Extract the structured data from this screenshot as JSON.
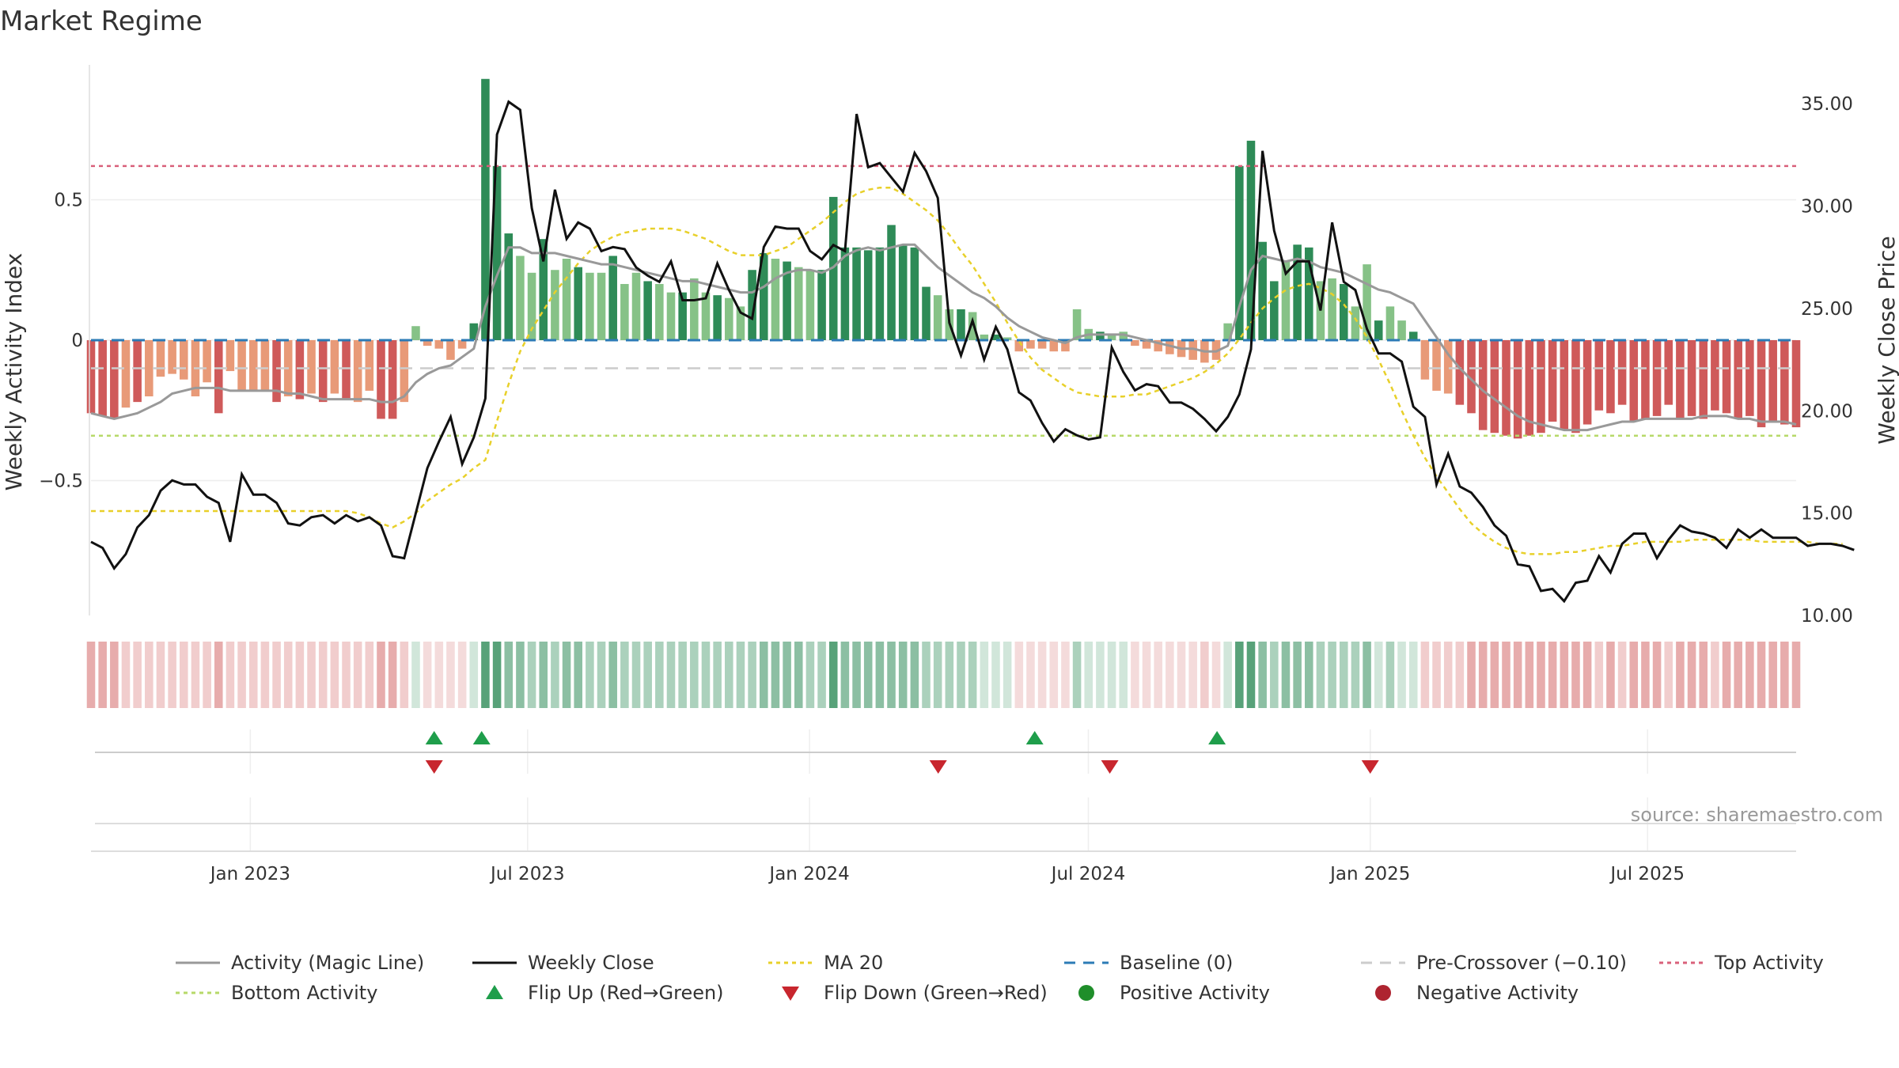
{
  "chart_data": {
    "type": "bar",
    "title": "Market Regime",
    "source": "source: sharemaestro.com",
    "ylabel_left": "Weekly Activity Index",
    "ylabel_right": "Weekly Close Price",
    "ylim_left": [
      -0.98,
      0.98
    ],
    "ylim_right": [
      10.0,
      36.9
    ],
    "left_ticks": [
      {
        "v": 0.5,
        "label": "0.5"
      },
      {
        "v": 0,
        "label": "0"
      },
      {
        "v": -0.5,
        "label": "−0.5"
      }
    ],
    "right_ticks": [
      {
        "v": 35,
        "label": "35.00"
      },
      {
        "v": 30,
        "label": "30.00"
      },
      {
        "v": 25,
        "label": "25.00"
      },
      {
        "v": 20,
        "label": "20.00"
      },
      {
        "v": 15,
        "label": "15.00"
      },
      {
        "v": 10,
        "label": "10.00"
      }
    ],
    "x_start": "2022-09-19",
    "x_end": "2025-10-06",
    "date_ticks": [
      {
        "date": "2023-01-01",
        "label": "Jan 2023"
      },
      {
        "date": "2023-07-01",
        "label": "Jul 2023"
      },
      {
        "date": "2024-01-01",
        "label": "Jan 2024"
      },
      {
        "date": "2024-07-01",
        "label": "Jul 2024"
      },
      {
        "date": "2025-01-01",
        "label": "Jan 2025"
      },
      {
        "date": "2025-07-01",
        "label": "Jul 2025"
      }
    ],
    "reference_lines": {
      "top_activity": 0.62,
      "bottom_activity": -0.34,
      "pre_crossover": -0.1,
      "baseline": 0
    },
    "activity": [
      -0.26,
      -0.27,
      -0.28,
      -0.24,
      -0.22,
      -0.2,
      -0.13,
      -0.12,
      -0.14,
      -0.2,
      -0.15,
      -0.26,
      -0.11,
      -0.18,
      -0.18,
      -0.18,
      -0.22,
      -0.2,
      -0.21,
      -0.19,
      -0.22,
      -0.19,
      -0.21,
      -0.22,
      -0.18,
      -0.28,
      -0.28,
      -0.22,
      0.05,
      -0.02,
      -0.03,
      -0.07,
      -0.03,
      0.06,
      0.93,
      0.62,
      0.38,
      0.3,
      0.24,
      0.36,
      0.25,
      0.29,
      0.26,
      0.24,
      0.24,
      0.3,
      0.2,
      0.24,
      0.21,
      0.2,
      0.17,
      0.17,
      0.22,
      0.17,
      0.16,
      0.15,
      0.12,
      0.25,
      0.31,
      0.29,
      0.28,
      0.26,
      0.25,
      0.25,
      0.51,
      0.33,
      0.33,
      0.32,
      0.33,
      0.41,
      0.34,
      0.33,
      0.19,
      0.16,
      0.11,
      0.11,
      0.1,
      0.02,
      0.02,
      0.01,
      -0.04,
      -0.03,
      -0.03,
      -0.04,
      -0.04,
      0.11,
      0.04,
      0.03,
      0.02,
      0.03,
      -0.02,
      -0.03,
      -0.04,
      -0.05,
      -0.06,
      -0.07,
      -0.08,
      -0.07,
      0.06,
      0.62,
      0.71,
      0.35,
      0.21,
      0.28,
      0.34,
      0.33,
      0.21,
      0.22,
      0.2,
      0.12,
      0.27,
      0.07,
      0.12,
      0.07,
      0.03,
      -0.14,
      -0.18,
      -0.19,
      -0.23,
      -0.26,
      -0.32,
      -0.33,
      -0.34,
      -0.35,
      -0.34,
      -0.33,
      -0.29,
      -0.32,
      -0.33,
      -0.3,
      -0.25,
      -0.26,
      -0.23,
      -0.29,
      -0.28,
      -0.27,
      -0.23,
      -0.28,
      -0.27,
      -0.28,
      -0.25,
      -0.26,
      -0.28,
      -0.27,
      -0.31,
      -0.29,
      -0.3,
      -0.31
    ],
    "magic_line": [
      -0.26,
      -0.27,
      -0.28,
      -0.27,
      -0.26,
      -0.24,
      -0.22,
      -0.19,
      -0.18,
      -0.17,
      -0.17,
      -0.17,
      -0.18,
      -0.18,
      -0.18,
      -0.18,
      -0.18,
      -0.19,
      -0.19,
      -0.2,
      -0.21,
      -0.21,
      -0.21,
      -0.21,
      -0.21,
      -0.22,
      -0.22,
      -0.2,
      -0.15,
      -0.12,
      -0.1,
      -0.09,
      -0.06,
      -0.03,
      0.12,
      0.23,
      0.33,
      0.33,
      0.31,
      0.31,
      0.31,
      0.3,
      0.29,
      0.28,
      0.27,
      0.27,
      0.26,
      0.25,
      0.24,
      0.23,
      0.22,
      0.21,
      0.21,
      0.2,
      0.19,
      0.18,
      0.17,
      0.17,
      0.19,
      0.22,
      0.24,
      0.25,
      0.25,
      0.24,
      0.26,
      0.3,
      0.32,
      0.33,
      0.32,
      0.33,
      0.34,
      0.34,
      0.3,
      0.26,
      0.23,
      0.2,
      0.17,
      0.15,
      0.12,
      0.08,
      0.05,
      0.03,
      0.01,
      0.0,
      -0.01,
      0.01,
      0.02,
      0.02,
      0.02,
      0.02,
      0.01,
      0.0,
      -0.01,
      -0.02,
      -0.03,
      -0.03,
      -0.04,
      -0.04,
      -0.02,
      0.12,
      0.25,
      0.3,
      0.29,
      0.28,
      0.29,
      0.28,
      0.26,
      0.25,
      0.24,
      0.22,
      0.2,
      0.18,
      0.17,
      0.15,
      0.13,
      0.07,
      0.01,
      -0.05,
      -0.1,
      -0.14,
      -0.18,
      -0.21,
      -0.24,
      -0.27,
      -0.29,
      -0.3,
      -0.31,
      -0.32,
      -0.32,
      -0.32,
      -0.31,
      -0.3,
      -0.29,
      -0.29,
      -0.28,
      -0.28,
      -0.28,
      -0.28,
      -0.28,
      -0.27,
      -0.27,
      -0.27,
      -0.28,
      -0.28,
      -0.29,
      -0.29,
      -0.29,
      -0.3
    ],
    "close": [
      13.6,
      13.3,
      12.3,
      13.0,
      14.3,
      14.9,
      16.1,
      16.6,
      16.4,
      16.4,
      15.8,
      15.5,
      13.6,
      16.9,
      15.9,
      15.9,
      15.5,
      14.5,
      14.4,
      14.8,
      14.9,
      14.5,
      14.9,
      14.6,
      14.8,
      14.4,
      12.9,
      12.8,
      15.0,
      17.2,
      18.5,
      19.7,
      17.4,
      18.7,
      20.6,
      33.5,
      35.1,
      34.7,
      29.9,
      27.3,
      30.8,
      28.4,
      29.2,
      28.9,
      27.8,
      28.0,
      27.9,
      27.0,
      26.6,
      26.3,
      27.3,
      25.4,
      25.4,
      25.5,
      27.2,
      25.9,
      24.8,
      24.5,
      28.0,
      29.0,
      28.9,
      28.9,
      27.8,
      27.4,
      28.1,
      27.8,
      34.5,
      31.9,
      32.1,
      31.4,
      30.7,
      32.6,
      31.7,
      30.4,
      24.3,
      22.7,
      24.4,
      22.5,
      24.1,
      23.0,
      20.9,
      20.5,
      19.4,
      18.5,
      19.1,
      18.8,
      18.6,
      18.7,
      23.1,
      21.9,
      21.0,
      21.3,
      21.2,
      20.4,
      20.4,
      20.1,
      19.6,
      19.0,
      19.7,
      20.8,
      23.0,
      32.7,
      28.8,
      26.7,
      27.3,
      27.3,
      24.9,
      29.2,
      26.3,
      25.9,
      24.0,
      22.8,
      22.8,
      22.4,
      20.2,
      19.7,
      16.4,
      17.9,
      16.3,
      16.0,
      15.3,
      14.4,
      13.9,
      12.5,
      12.4,
      11.2,
      11.3,
      10.7,
      11.6,
      11.7,
      12.9,
      12.1,
      13.5,
      14.0,
      14.0,
      12.8,
      13.7,
      14.4,
      14.1,
      14.0,
      13.8,
      13.3,
      14.2,
      13.8,
      14.2,
      13.8,
      13.8,
      13.8,
      13.4,
      13.5,
      13.5,
      13.4,
      13.2
    ],
    "ma20": [
      15.1,
      15.1,
      15.1,
      15.1,
      15.1,
      15.1,
      15.1,
      15.1,
      15.1,
      15.1,
      15.1,
      15.1,
      15.1,
      15.1,
      15.1,
      15.1,
      15.1,
      15.1,
      15.1,
      15.1,
      15.1,
      15.1,
      15.1,
      15.0,
      14.8,
      14.5,
      14.3,
      14.6,
      15.0,
      15.6,
      16.0,
      16.4,
      16.7,
      17.2,
      17.6,
      19.5,
      21.3,
      22.9,
      24.0,
      24.9,
      25.8,
      26.5,
      27.2,
      27.8,
      28.2,
      28.5,
      28.7,
      28.8,
      28.9,
      28.9,
      28.9,
      28.8,
      28.6,
      28.4,
      28.1,
      27.8,
      27.6,
      27.6,
      27.6,
      27.8,
      28.0,
      28.4,
      28.8,
      29.2,
      29.7,
      30.2,
      30.6,
      30.8,
      30.9,
      30.9,
      30.6,
      30.2,
      29.8,
      29.3,
      28.6,
      27.8,
      27.1,
      26.2,
      25.3,
      24.3,
      23.4,
      22.6,
      22.0,
      21.6,
      21.2,
      20.9,
      20.8,
      20.7,
      20.7,
      20.7,
      20.8,
      20.8,
      21.0,
      21.2,
      21.4,
      21.6,
      21.9,
      22.3,
      22.8,
      23.5,
      24.3,
      25.0,
      25.5,
      25.9,
      26.1,
      26.2,
      26.0,
      25.7,
      25.2,
      24.5,
      23.6,
      22.5,
      21.3,
      20.0,
      18.8,
      17.7,
      16.8,
      16.0,
      15.2,
      14.5,
      14.0,
      13.6,
      13.3,
      13.1,
      13.0,
      13.0,
      13.0,
      13.1,
      13.1,
      13.2,
      13.3,
      13.4,
      13.4,
      13.5,
      13.6,
      13.6,
      13.6,
      13.6,
      13.7,
      13.7,
      13.7,
      13.7,
      13.7,
      13.7,
      13.6,
      13.6,
      13.6,
      13.6,
      13.6,
      13.5,
      13.5,
      13.5
    ],
    "flip_up_dates": [
      "2023-05-01",
      "2023-06-01",
      "2024-05-27",
      "2024-09-23"
    ],
    "flip_down_dates": [
      "2023-05-01",
      "2024-03-25",
      "2024-07-15",
      "2025-01-01"
    ],
    "colors": {
      "pos_strong": "#2E8B57",
      "pos_weak": "#86C287",
      "neg_strong": "#CF5A5A",
      "neg_weak": "#E89A78",
      "magic": "#999999",
      "close": "#111111",
      "ma20": "#E8D02A",
      "baseline": "#2C7BB6",
      "precross": "#CCCCCC",
      "top": "#D9607A",
      "bottom": "#B7D969",
      "flip_up": "#1F9E4B",
      "flip_down": "#C8262E",
      "pos_dot": "#1F8E2A",
      "neg_dot": "#AE2430"
    },
    "legend": [
      {
        "label": "Activity (Magic Line)",
        "kind": "line",
        "color": "#999999",
        "dash": ""
      },
      {
        "label": "Weekly Close",
        "kind": "line",
        "color": "#111111",
        "dash": ""
      },
      {
        "label": "MA 20",
        "kind": "line",
        "color": "#E8D02A",
        "dash": "5,5"
      },
      {
        "label": "Baseline (0)",
        "kind": "line",
        "color": "#2C7BB6",
        "dash": "14,10"
      },
      {
        "label": "Pre-Crossover (−0.10)",
        "kind": "line",
        "color": "#CCCCCC",
        "dash": "14,10"
      },
      {
        "label": "Top Activity",
        "kind": "line",
        "color": "#D9607A",
        "dash": "5,5"
      },
      {
        "label": "Bottom Activity",
        "kind": "line",
        "color": "#B7D969",
        "dash": "5,5"
      },
      {
        "label": "Flip Up (Red→Green)",
        "kind": "tri-up",
        "color": "#1F9E4B"
      },
      {
        "label": "Flip Down (Green→Red)",
        "kind": "tri-down",
        "color": "#C8262E"
      },
      {
        "label": "Positive Activity",
        "kind": "dot",
        "color": "#1F8E2A"
      },
      {
        "label": "Negative Activity",
        "kind": "dot",
        "color": "#AE2430"
      }
    ]
  }
}
